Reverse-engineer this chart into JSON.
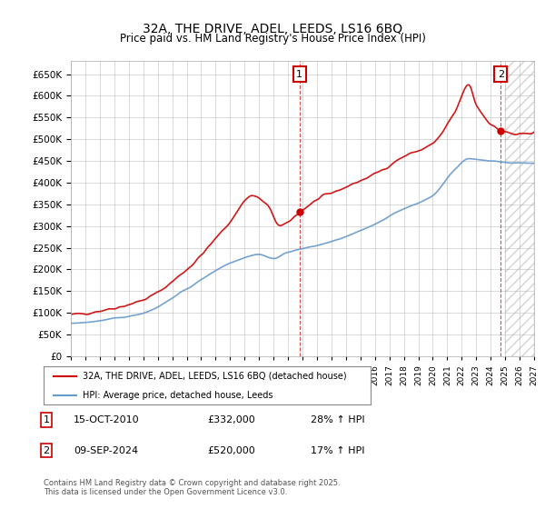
{
  "title": "32A, THE DRIVE, ADEL, LEEDS, LS16 6BQ",
  "subtitle": "Price paid vs. HM Land Registry's House Price Index (HPI)",
  "ylabel_values": [
    0,
    50000,
    100000,
    150000,
    200000,
    250000,
    300000,
    350000,
    400000,
    450000,
    500000,
    550000,
    600000,
    650000
  ],
  "x_start_year": 1995,
  "x_end_year": 2027,
  "red_color": "#cc0000",
  "blue_color": "#6699cc",
  "grid_color": "#cccccc",
  "dashed_line_color": "#cc0000",
  "marker1_year": 2010.8,
  "marker2_year": 2024.7,
  "marker1_value": 332000,
  "marker2_value": 520000,
  "legend_entries": [
    "32A, THE DRIVE, ADEL, LEEDS, LS16 6BQ (detached house)",
    "HPI: Average price, detached house, Leeds"
  ],
  "annotation1_label": "1",
  "annotation2_label": "2",
  "table_rows": [
    {
      "num": "1",
      "date": "15-OCT-2010",
      "price": "£332,000",
      "change": "28% ↑ HPI"
    },
    {
      "num": "2",
      "date": "09-SEP-2024",
      "price": "£520,000",
      "change": "17% ↑ HPI"
    }
  ],
  "footer": "Contains HM Land Registry data © Crown copyright and database right 2025.\nThis data is licensed under the Open Government Licence v3.0."
}
